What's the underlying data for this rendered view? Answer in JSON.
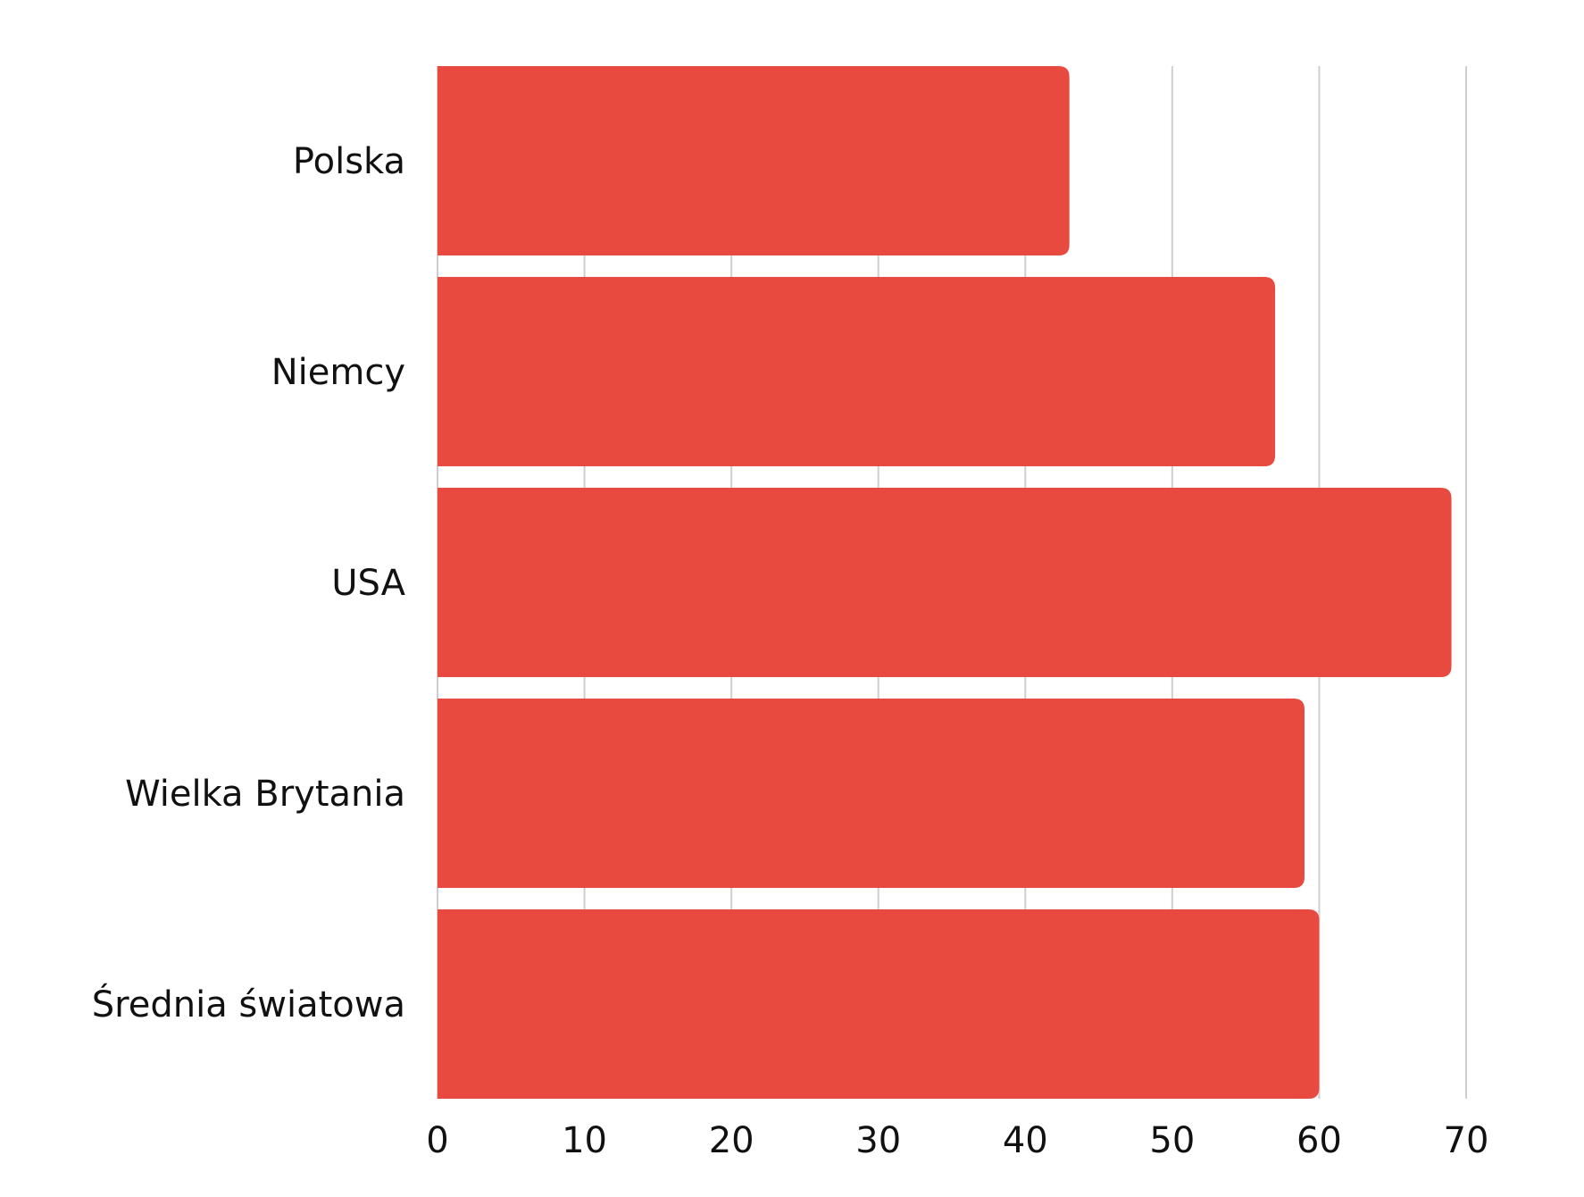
{
  "chart_data": {
    "type": "bar",
    "orientation": "horizontal",
    "categories": [
      "Polska",
      "Niemcy",
      "USA",
      "Wielka Brytania",
      "Średnia światowa"
    ],
    "values": [
      43,
      57,
      69,
      59,
      60
    ],
    "xlim": [
      0,
      70
    ],
    "xticks": [
      "0",
      "10",
      "20",
      "30",
      "40",
      "50",
      "60",
      "70"
    ],
    "title": "",
    "xlabel": "",
    "ylabel": "",
    "grid": "vertical",
    "legend": "none",
    "bar_color": "#e94a40"
  }
}
